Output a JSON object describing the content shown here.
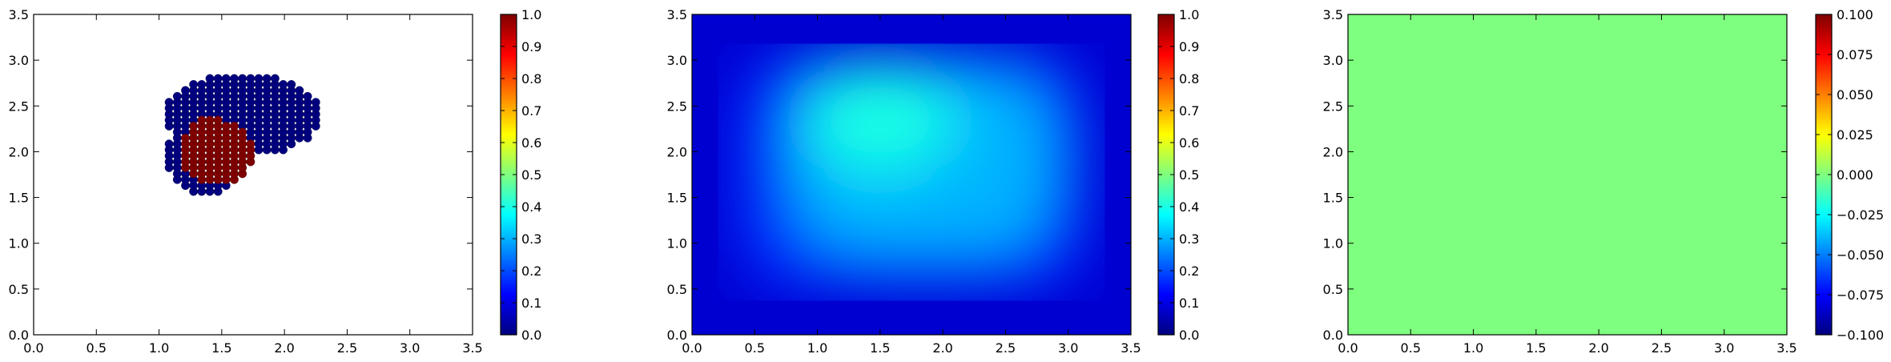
{
  "colors": {
    "jet": [
      "#00007f",
      "#0000ff",
      "#007fff",
      "#00ffff",
      "#7fff7f",
      "#ffff00",
      "#ff7f00",
      "#ff0000",
      "#7f0000"
    ],
    "low_class": "#00007f",
    "high_class": "#7f0000",
    "uniform_field": "#7fff7f"
  },
  "chart_data": [
    {
      "type": "scatter",
      "title": "",
      "xlabel": "",
      "ylabel": "",
      "xlim": [
        0,
        3.5
      ],
      "ylim": [
        0,
        3.5
      ],
      "xticks": [
        "0.0",
        "0.5",
        "1.0",
        "1.5",
        "2.0",
        "2.5",
        "3.0",
        "3.5"
      ],
      "yticks": [
        "0.0",
        "0.5",
        "1.0",
        "1.5",
        "2.0",
        "2.5",
        "3.0",
        "3.5"
      ],
      "colorbar": {
        "range": [
          0,
          1
        ],
        "ticks": [
          "0.0",
          "0.1",
          "0.2",
          "0.3",
          "0.4",
          "0.5",
          "0.6",
          "0.7",
          "0.8",
          "0.9",
          "1.0"
        ]
      },
      "grid": false,
      "grid_spacing": 0.065,
      "series": [
        {
          "value": 0.0,
          "region": {
            "ellipse": {
              "cx": 1.66,
              "cy": 2.42,
              "rx": 0.62,
              "ry": 0.42
            },
            "top_y_max": 2.82,
            "bottom_y_min": 1.55,
            "x_min": 0.98,
            "x_max": 2.27,
            "cap": {
              "cx": 1.8,
              "cy": 2.4,
              "rx": 0.48,
              "ry": 0.42
            }
          }
        },
        {
          "value": 1.0,
          "region": {
            "ellipse": {
              "cx": 1.46,
              "cy": 1.98,
              "rx": 0.3,
              "ry": 0.34
            },
            "extra": {
              "cx": 1.4,
              "cy": 2.05,
              "rx": 0.18,
              "ry": 0.34
            }
          }
        }
      ]
    },
    {
      "type": "heatmap",
      "title": "",
      "xlabel": "",
      "ylabel": "",
      "xlim": [
        0,
        3.5
      ],
      "ylim": [
        0,
        3.5
      ],
      "xticks": [
        "0.0",
        "0.5",
        "1.0",
        "1.5",
        "2.0",
        "2.5",
        "3.0",
        "3.5"
      ],
      "yticks": [
        "0.0",
        "0.5",
        "1.0",
        "1.5",
        "2.0",
        "2.5",
        "3.0",
        "3.5"
      ],
      "colorbar": {
        "range": [
          0,
          1
        ],
        "ticks": [
          "0.0",
          "0.1",
          "0.2",
          "0.3",
          "0.4",
          "0.5",
          "0.6",
          "0.7",
          "0.8",
          "0.9",
          "1.0"
        ]
      },
      "grid": false,
      "field": {
        "background": 0.08,
        "peak": 0.4,
        "plateau": 0.3,
        "peak_center": [
          1.5,
          2.35
        ],
        "plateau_center": [
          1.85,
          1.9
        ],
        "plateau_half_width": [
          1.05,
          1.05
        ]
      }
    },
    {
      "type": "heatmap",
      "title": "",
      "xlabel": "",
      "ylabel": "",
      "xlim": [
        0,
        3.5
      ],
      "ylim": [
        0,
        3.5
      ],
      "xticks": [
        "0.0",
        "0.5",
        "1.0",
        "1.5",
        "2.0",
        "2.5",
        "3.0",
        "3.5"
      ],
      "yticks": [
        "0.0",
        "0.5",
        "1.0",
        "1.5",
        "2.0",
        "2.5",
        "3.0",
        "3.5"
      ],
      "colorbar": {
        "range": [
          -0.1,
          0.1
        ],
        "ticks": [
          "−0.100",
          "−0.075",
          "−0.050",
          "−0.025",
          "0.000",
          "0.025",
          "0.050",
          "0.075",
          "0.100"
        ]
      },
      "grid": false,
      "field": {
        "uniform": 0.0
      }
    }
  ]
}
